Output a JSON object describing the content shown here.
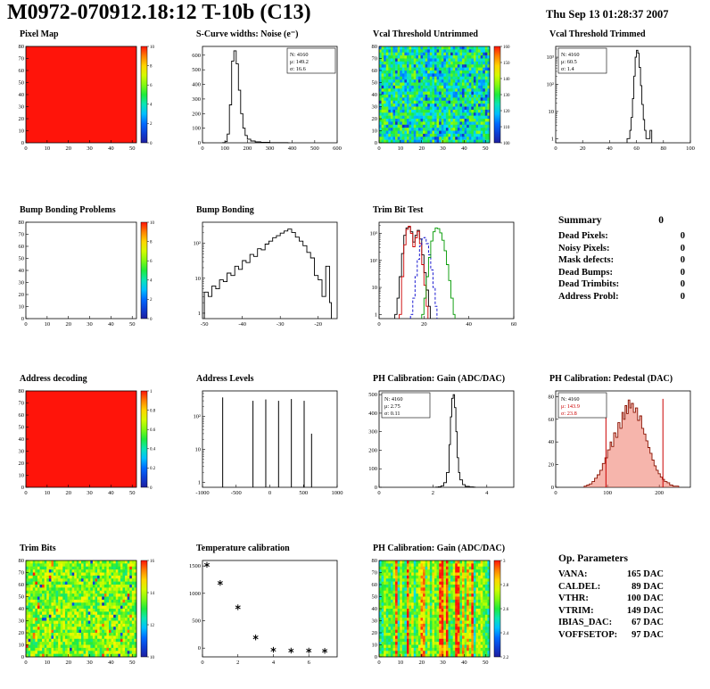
{
  "header": {
    "title": "M0972-070912.18:12 T-10b (C13)",
    "datetime": "Thu Sep 13 01:28:37 2007"
  },
  "summary": {
    "heading": "Summary",
    "heading_value": "0",
    "rows": [
      {
        "label": "Dead Pixels:",
        "value": "0"
      },
      {
        "label": "Noisy Pixels:",
        "value": "0"
      },
      {
        "label": "Mask defects:",
        "value": "0"
      },
      {
        "label": "Dead Bumps:",
        "value": "0"
      },
      {
        "label": "Dead Trimbits:",
        "value": "0"
      },
      {
        "label": "Address Probl:",
        "value": "0"
      }
    ]
  },
  "op_parameters": {
    "heading": "Op. Parameters",
    "rows": [
      {
        "label": "VANA:",
        "value": "165 DAC"
      },
      {
        "label": "CALDEL:",
        "value": "89 DAC"
      },
      {
        "label": "VTHR:",
        "value": "100 DAC"
      },
      {
        "label": "VTRIM:",
        "value": "149 DAC"
      },
      {
        "label": "IBIAS_DAC:",
        "value": "67 DAC"
      },
      {
        "label": "VOFFSETOP:",
        "value": "97 DAC"
      }
    ]
  },
  "colors": {
    "accent_red": "#cc0000",
    "map_red": "#ff1409",
    "background": "#ffffff"
  },
  "chart_data": [
    {
      "id": "pixel-map",
      "title": "Pixel Map",
      "type": "heatmap",
      "xlim": [
        0,
        52
      ],
      "ylim": [
        0,
        80
      ],
      "xticks": [
        0,
        10,
        20,
        30,
        40,
        50
      ],
      "yticks": [
        0,
        10,
        20,
        30,
        40,
        50,
        60,
        70,
        80
      ],
      "zlim": [
        0,
        10
      ],
      "zticks": [
        0,
        2,
        4,
        6,
        8,
        10
      ],
      "fill": "uniform",
      "value": 10
    },
    {
      "id": "scurve-noise",
      "title": "S-Curve widths: Noise (e⁻)",
      "type": "histogram",
      "xlim": [
        0,
        600
      ],
      "ylim": [
        0,
        660
      ],
      "xticks": [
        0,
        100,
        200,
        300,
        400,
        500,
        600
      ],
      "yticks": [
        0,
        100,
        200,
        300,
        400,
        500,
        600
      ],
      "stats": [
        "N: 4160",
        "μ: 149.2",
        "σ: 16.6"
      ],
      "stats_pos": "right",
      "points": [
        [
          90,
          1
        ],
        [
          100,
          8
        ],
        [
          110,
          60
        ],
        [
          120,
          260
        ],
        [
          130,
          560
        ],
        [
          140,
          630
        ],
        [
          150,
          540
        ],
        [
          160,
          360
        ],
        [
          170,
          200
        ],
        [
          180,
          100
        ],
        [
          190,
          50
        ],
        [
          200,
          25
        ],
        [
          215,
          12
        ],
        [
          235,
          6
        ],
        [
          260,
          3
        ],
        [
          300,
          1
        ],
        [
          340,
          1
        ],
        [
          380,
          0
        ]
      ]
    },
    {
      "id": "vcal-threshold-untrimmed",
      "title": "Vcal Threshold Untrimmed",
      "type": "heatmap",
      "xlim": [
        0,
        52
      ],
      "ylim": [
        0,
        80
      ],
      "xticks": [
        0,
        10,
        20,
        30,
        40,
        50
      ],
      "yticks": [
        0,
        10,
        20,
        30,
        40,
        50,
        60,
        70,
        80
      ],
      "zlim": [
        100,
        160
      ],
      "zticks": [
        100,
        110,
        120,
        130,
        140,
        150,
        160
      ],
      "fill": "noise",
      "texture": {
        "base": 0.42,
        "spread": 0.42,
        "low_frac": 0.05,
        "seed": 7
      }
    },
    {
      "id": "vcal-threshold-trimmed",
      "title": "Vcal Threshold Trimmed",
      "type": "histogram",
      "log": true,
      "xlim": [
        0,
        100
      ],
      "ylim": [
        0.7,
        2500
      ],
      "xticks": [
        0,
        20,
        40,
        60,
        80,
        100
      ],
      "stats": [
        "N: 4160",
        "μ: 60.5",
        "σ:  1.4"
      ],
      "stats_pos": "left",
      "points": [
        [
          53,
          1
        ],
        [
          55,
          2
        ],
        [
          56,
          6
        ],
        [
          57,
          30
        ],
        [
          58,
          200
        ],
        [
          59,
          1000
        ],
        [
          60,
          1800
        ],
        [
          61,
          1400
        ],
        [
          62,
          420
        ],
        [
          63,
          90
        ],
        [
          64,
          18
        ],
        [
          65,
          5
        ],
        [
          66,
          2
        ],
        [
          67,
          1
        ],
        [
          70,
          2
        ]
      ]
    },
    {
      "id": "bump-bonding-problems",
      "title": "Bump Bonding Problems",
      "type": "heatmap",
      "xlim": [
        0,
        52
      ],
      "ylim": [
        0,
        80
      ],
      "xticks": [
        0,
        10,
        20,
        30,
        40,
        50
      ],
      "yticks": [
        0,
        10,
        20,
        30,
        40,
        50,
        60,
        70,
        80
      ],
      "zlim": [
        0,
        10
      ],
      "zticks": [
        0,
        2,
        4,
        6,
        8,
        10
      ],
      "fill": "empty"
    },
    {
      "id": "bump-bonding",
      "title": "Bump Bonding",
      "type": "histogram",
      "log": true,
      "xlim": [
        -50.5,
        -15
      ],
      "ylim": [
        0.7,
        400
      ],
      "xticks": [
        -50,
        -40,
        -30,
        -20
      ],
      "points": [
        [
          -50,
          4
        ],
        [
          -49,
          3
        ],
        [
          -48,
          6
        ],
        [
          -47,
          5
        ],
        [
          -46,
          9
        ],
        [
          -45,
          8
        ],
        [
          -44,
          14
        ],
        [
          -43,
          12
        ],
        [
          -42,
          22
        ],
        [
          -41,
          18
        ],
        [
          -40,
          32
        ],
        [
          -39,
          28
        ],
        [
          -38,
          48
        ],
        [
          -37,
          42
        ],
        [
          -36,
          70
        ],
        [
          -35,
          65
        ],
        [
          -34,
          95
        ],
        [
          -33,
          115
        ],
        [
          -32,
          145
        ],
        [
          -31,
          165
        ],
        [
          -30,
          195
        ],
        [
          -29,
          225
        ],
        [
          -28,
          255
        ],
        [
          -27,
          205
        ],
        [
          -26,
          150
        ],
        [
          -25,
          115
        ],
        [
          -24,
          85
        ],
        [
          -23,
          55
        ],
        [
          -22,
          38
        ],
        [
          -21,
          12
        ],
        [
          -20,
          9
        ],
        [
          -19,
          3
        ],
        [
          -18,
          22
        ],
        [
          -17,
          2
        ]
      ]
    },
    {
      "id": "trim-bit-test",
      "title": "Trim Bit Test",
      "type": "histogram",
      "log": true,
      "xlim": [
        0,
        60
      ],
      "ylim": [
        0.7,
        2600
      ],
      "xticks": [
        0,
        20,
        40,
        60
      ],
      "series": [
        {
          "name": "black",
          "color": "#000000",
          "points": [
            [
              7,
              1
            ],
            [
              8,
              4
            ],
            [
              9,
              25
            ],
            [
              10,
              180
            ],
            [
              11,
              850
            ],
            [
              12,
              1600
            ],
            [
              13,
              1750
            ],
            [
              14,
              1150
            ],
            [
              15,
              480
            ],
            [
              16,
              850
            ],
            [
              17,
              1300
            ],
            [
              18,
              620
            ],
            [
              19,
              160
            ],
            [
              20,
              35
            ],
            [
              21,
              8
            ],
            [
              22,
              2
            ]
          ]
        },
        {
          "name": "red",
          "color": "#cc0000",
          "points": [
            [
              9,
              1
            ],
            [
              10,
              25
            ],
            [
              11,
              380
            ],
            [
              12,
              1400
            ],
            [
              13,
              1850
            ],
            [
              14,
              1000
            ],
            [
              15,
              320
            ],
            [
              16,
              680
            ],
            [
              17,
              1200
            ],
            [
              18,
              420
            ],
            [
              19,
              70
            ],
            [
              20,
              12
            ],
            [
              21,
              2
            ]
          ]
        },
        {
          "name": "blue",
          "color": "#0000cc",
          "dash": "3,2",
          "points": [
            [
              14,
              1
            ],
            [
              15,
              4
            ],
            [
              16,
              25
            ],
            [
              17,
              110
            ],
            [
              18,
              340
            ],
            [
              19,
              620
            ],
            [
              20,
              700
            ],
            [
              21,
              420
            ],
            [
              22,
              160
            ],
            [
              23,
              45
            ],
            [
              24,
              10
            ],
            [
              25,
              2
            ]
          ]
        },
        {
          "name": "green",
          "color": "#009900",
          "points": [
            [
              19,
              1
            ],
            [
              20,
              4
            ],
            [
              21,
              25
            ],
            [
              22,
              130
            ],
            [
              23,
              520
            ],
            [
              24,
              1150
            ],
            [
              25,
              1600
            ],
            [
              26,
              1500
            ],
            [
              27,
              1050
            ],
            [
              28,
              560
            ],
            [
              29,
              230
            ],
            [
              30,
              70
            ],
            [
              31,
              18
            ],
            [
              32,
              4
            ],
            [
              33,
              1
            ]
          ]
        }
      ]
    },
    {
      "id": "address-decoding",
      "title": "Address decoding",
      "type": "heatmap",
      "xlim": [
        0,
        52
      ],
      "ylim": [
        0,
        80
      ],
      "xticks": [
        0,
        10,
        20,
        30,
        40,
        50
      ],
      "yticks": [
        0,
        10,
        20,
        30,
        40,
        50,
        60,
        70,
        80
      ],
      "zlim": [
        0,
        1
      ],
      "zticks": [
        0,
        0.2,
        0.4,
        0.6,
        0.8,
        1
      ],
      "fill": "uniform",
      "value": 1
    },
    {
      "id": "address-levels",
      "title": "Address Levels",
      "type": "spikes",
      "log": true,
      "xlim": [
        -1000,
        1000
      ],
      "ylim": [
        0.7,
        600
      ],
      "xticks": [
        -1000,
        -500,
        0,
        500,
        1000
      ],
      "points": [
        [
          -700,
          380
        ],
        [
          -250,
          300
        ],
        [
          -60,
          330
        ],
        [
          130,
          300
        ],
        [
          320,
          340
        ],
        [
          510,
          300
        ],
        [
          620,
          30
        ]
      ]
    },
    {
      "id": "ph-calibration-gain-hist",
      "title": "PH Calibration: Gain (ADC/DAC)",
      "type": "histogram",
      "xlim": [
        0,
        5
      ],
      "ylim": [
        0,
        520
      ],
      "xticks": [
        0,
        2,
        4
      ],
      "yticks": [
        0,
        100,
        200,
        300,
        400,
        500
      ],
      "stats": [
        "N: 4160",
        "μ: 2.75",
        "σ: 0.11"
      ],
      "stats_pos": "left",
      "points": [
        [
          2.1,
          1
        ],
        [
          2.2,
          3
        ],
        [
          2.3,
          8
        ],
        [
          2.4,
          25
        ],
        [
          2.5,
          80
        ],
        [
          2.6,
          230
        ],
        [
          2.65,
          380
        ],
        [
          2.7,
          480
        ],
        [
          2.75,
          500
        ],
        [
          2.8,
          430
        ],
        [
          2.85,
          300
        ],
        [
          2.9,
          160
        ],
        [
          2.95,
          80
        ],
        [
          3.0,
          40
        ],
        [
          3.1,
          14
        ],
        [
          3.2,
          5
        ],
        [
          3.35,
          2
        ],
        [
          3.5,
          1
        ]
      ]
    },
    {
      "id": "ph-calibration-pedestal",
      "title": "PH Calibration: Pedestal (DAC)",
      "type": "histogram",
      "xlim": [
        0,
        260
      ],
      "ylim": [
        0,
        85
      ],
      "xticks": [
        0,
        100,
        200
      ],
      "yticks": [
        0,
        20,
        40,
        60,
        80
      ],
      "stats": [
        "N: 4160",
        "μ: 143.9",
        "σ: 23.8"
      ],
      "stats_pos": "left",
      "stats_colors": [
        "#000000",
        "#cc0000",
        "#cc0000"
      ],
      "line_color": "#881100",
      "fill_color": "rgba(235,90,70,0.45)",
      "cuts": [
        97,
        207
      ],
      "cut_height": 78,
      "points": [
        [
          55,
          1
        ],
        [
          60,
          2
        ],
        [
          65,
          3
        ],
        [
          70,
          5
        ],
        [
          75,
          8
        ],
        [
          80,
          11
        ],
        [
          85,
          15
        ],
        [
          90,
          21
        ],
        [
          95,
          26
        ],
        [
          100,
          33
        ],
        [
          105,
          40
        ],
        [
          108,
          36
        ],
        [
          112,
          48
        ],
        [
          116,
          44
        ],
        [
          120,
          57
        ],
        [
          124,
          52
        ],
        [
          128,
          66
        ],
        [
          131,
          60
        ],
        [
          134,
          72
        ],
        [
          137,
          65
        ],
        [
          140,
          77
        ],
        [
          143,
          70
        ],
        [
          146,
          74
        ],
        [
          150,
          66
        ],
        [
          154,
          70
        ],
        [
          158,
          59
        ],
        [
          162,
          63
        ],
        [
          166,
          52
        ],
        [
          170,
          47
        ],
        [
          174,
          41
        ],
        [
          178,
          35
        ],
        [
          182,
          30
        ],
        [
          186,
          24
        ],
        [
          190,
          19
        ],
        [
          194,
          15
        ],
        [
          198,
          12
        ],
        [
          202,
          9
        ],
        [
          206,
          7
        ],
        [
          210,
          5
        ],
        [
          215,
          4
        ],
        [
          220,
          2
        ],
        [
          226,
          1
        ],
        [
          234,
          1
        ]
      ]
    },
    {
      "id": "trim-bits-map",
      "title": "Trim Bits",
      "type": "heatmap",
      "xlim": [
        0,
        52
      ],
      "ylim": [
        0,
        80
      ],
      "xticks": [
        0,
        10,
        20,
        30,
        40,
        50
      ],
      "yticks": [
        0,
        10,
        20,
        30,
        40,
        50,
        60,
        70,
        80
      ],
      "zlim": [
        10,
        16
      ],
      "zticks": [
        10,
        12,
        14,
        16
      ],
      "fill": "noise",
      "texture": {
        "base": 0.6,
        "spread": 0.32,
        "high_frac": 0.02,
        "low_frac": 0.02,
        "seed": 11
      }
    },
    {
      "id": "temperature-calibration",
      "title": "Temperature calibration",
      "type": "scatter",
      "xlim": [
        0,
        7.6
      ],
      "ylim": [
        -160,
        1600
      ],
      "xticks": [
        0,
        2,
        4,
        6
      ],
      "yticks": [
        0,
        500,
        1000,
        1500
      ],
      "points": [
        [
          0.25,
          1520
        ],
        [
          1,
          1190
        ],
        [
          2,
          745
        ],
        [
          3,
          195
        ],
        [
          4,
          -30
        ],
        [
          5,
          -45
        ],
        [
          6,
          -45
        ],
        [
          6.9,
          -50
        ]
      ]
    },
    {
      "id": "ph-calibration-gain-map",
      "title": "PH Calibration: Gain (ADC/DAC)",
      "type": "heatmap",
      "xlim": [
        0,
        52
      ],
      "ylim": [
        0,
        80
      ],
      "xticks": [
        0,
        10,
        20,
        30,
        40,
        50
      ],
      "yticks": [
        0,
        10,
        20,
        30,
        40,
        50,
        60,
        70,
        80
      ],
      "zlim": [
        2.2,
        3
      ],
      "zticks": [
        2.2,
        2.4,
        2.6,
        2.8,
        3
      ],
      "fill": "noise",
      "texture": {
        "columnar": true,
        "spread": 0.28,
        "seed": 23
      }
    }
  ]
}
